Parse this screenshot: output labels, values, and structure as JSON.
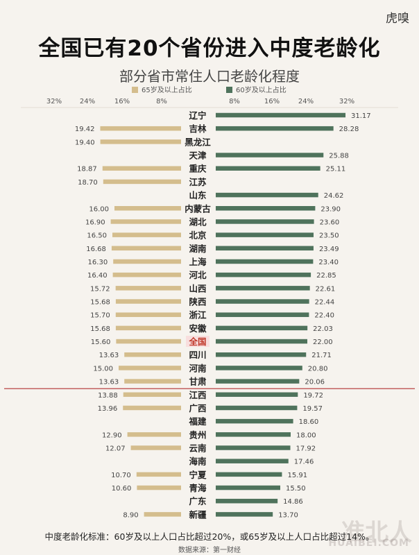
{
  "brand": "虎嗅",
  "title": "全国已有20个省份进入中度老龄化",
  "subtitle": "部分省市常住人口老龄化程度",
  "footer": {
    "note": "中度老龄化标准：60岁及以上人口占比超过20%，或65岁及以上人口占比超过14%。",
    "source": "数据来源：第一财经"
  },
  "watermark": {
    "main": "准北人",
    "sub": "HUAIBEI.COM"
  },
  "colors": {
    "left_bar": "#d4bd8d",
    "right_bar": "#4f735c",
    "highlight": "#c0392b",
    "divider": "#b03030"
  },
  "chart_data": {
    "type": "bar",
    "orientation": "horizontal-diverging",
    "categories": [
      "辽宁",
      "吉林",
      "黑龙江",
      "天津",
      "重庆",
      "江苏",
      "山东",
      "内蒙古",
      "湖北",
      "北京",
      "湖南",
      "上海",
      "河北",
      "山西",
      "陕西",
      "浙江",
      "安徽",
      "全国",
      "四川",
      "河南",
      "甘肃",
      "江西",
      "广西",
      "福建",
      "贵州",
      "云南",
      "海南",
      "宁夏",
      "青海",
      "广东",
      "新疆"
    ],
    "highlight_category": "全国",
    "divider_after": "甘肃",
    "series": [
      {
        "name": "65岁及以上占比",
        "side": "left",
        "color": "#d4bd8d",
        "values": [
          null,
          19.42,
          19.4,
          null,
          18.87,
          18.7,
          null,
          16.0,
          16.9,
          16.5,
          16.68,
          16.3,
          16.4,
          15.72,
          15.68,
          15.7,
          15.68,
          15.6,
          13.63,
          15.0,
          13.63,
          13.88,
          13.96,
          null,
          12.9,
          12.07,
          null,
          10.7,
          10.6,
          null,
          8.9
        ],
        "labels": [
          null,
          "19.42",
          "19.40",
          null,
          "18.87",
          "18.70",
          null,
          "16.00",
          "16.90",
          "16.50",
          "16.68",
          "16.30",
          "16.40",
          "15.72",
          "15.68",
          "15.70",
          "15.68",
          "15.60",
          "13.63",
          "15.00",
          "13.63",
          "13.88",
          "13.96",
          null,
          "12.90",
          "12.07",
          null,
          "10.70",
          "10.60",
          null,
          "8.90"
        ],
        "axis_ticks": [
          "32%",
          "24%",
          "16%",
          "8%"
        ]
      },
      {
        "name": "60岁及以上占比",
        "side": "right",
        "color": "#4f735c",
        "values": [
          31.17,
          28.28,
          null,
          25.88,
          25.11,
          null,
          24.62,
          23.9,
          23.6,
          23.5,
          23.49,
          23.4,
          22.85,
          22.61,
          22.44,
          22.4,
          22.03,
          22.0,
          21.71,
          20.8,
          20.06,
          19.72,
          19.57,
          18.6,
          18.0,
          17.92,
          17.46,
          15.91,
          15.5,
          14.86,
          13.7
        ],
        "labels": [
          "31.17",
          "28.28",
          null,
          "25.88",
          "25.11",
          null,
          "24.62",
          "23.90",
          "23.60",
          "23.50",
          "23.49",
          "23.40",
          "22.85",
          "22.61",
          "22.44",
          "22.40",
          "22.03",
          "22.00",
          "21.71",
          "20.80",
          "20.06",
          "19.72",
          "19.57",
          "18.60",
          "18.00",
          "17.92",
          "17.46",
          "15.91",
          "15.50",
          "14.86",
          "13.70"
        ],
        "axis_ticks": [
          "8%",
          "16%",
          "24%",
          "32%"
        ]
      }
    ],
    "xlim": [
      0,
      32
    ],
    "legend": "top-center"
  }
}
